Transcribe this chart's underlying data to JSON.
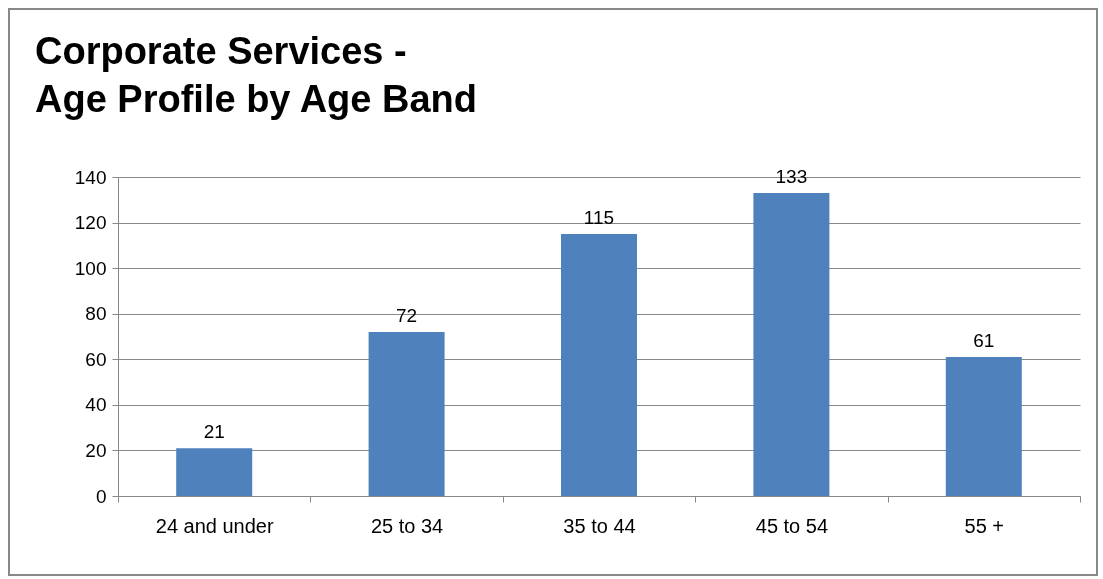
{
  "chart_data": {
    "type": "bar",
    "title": "Corporate Services -\nAge Profile by Age Band",
    "categories": [
      "24 and under",
      "25 to 34",
      "35 to 44",
      "45 to 54",
      "55 +"
    ],
    "values": [
      21,
      72,
      115,
      133,
      61
    ],
    "color": "#4f81bd",
    "ylim": [
      0,
      140
    ],
    "yticks": [
      0,
      20,
      40,
      60,
      80,
      100,
      120,
      140
    ],
    "grid": "y",
    "data_labels": true
  }
}
